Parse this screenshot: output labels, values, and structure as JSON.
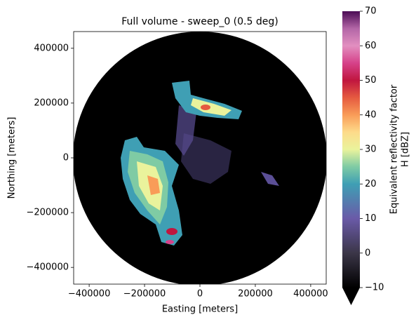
{
  "chart_data": {
    "type": "radar-ppi",
    "title": "Full volume - sweep_0 (0.5 deg)",
    "x_label": "Easting [meters]",
    "y_label": "Northing [meters]",
    "xlim": [
      -456000,
      456000
    ],
    "ylim": [
      -461000,
      461000
    ],
    "xticks": [
      {
        "value": -400000,
        "label": "−400000"
      },
      {
        "value": -200000,
        "label": "−200000"
      },
      0,
      200000,
      400000
    ],
    "yticks": [
      {
        "value": -400000,
        "label": "−400000"
      },
      {
        "value": -200000,
        "label": "−200000"
      },
      0,
      200000,
      400000
    ],
    "colorbar": {
      "label": [
        "Equivalent reflectivity factor",
        "H [dBZ]"
      ],
      "lim": [
        -10,
        70
      ],
      "ticks": [
        {
          "value": -10,
          "label": "−10"
        },
        0,
        10,
        20,
        30,
        40,
        50,
        60,
        70
      ],
      "stops": [
        {
          "value": -10,
          "color": "#000000"
        },
        {
          "value": 0,
          "color": "#3b3648"
        },
        {
          "value": 10,
          "color": "#6a5aa8"
        },
        {
          "value": 20,
          "color": "#3f9fb4"
        },
        {
          "value": 25,
          "color": "#7fcba4"
        },
        {
          "value": 30,
          "color": "#eaf39c"
        },
        {
          "value": 35,
          "color": "#fddb8a"
        },
        {
          "value": 40,
          "color": "#f99c58"
        },
        {
          "value": 45,
          "color": "#e55a40"
        },
        {
          "value": 50,
          "color": "#c0163f"
        },
        {
          "value": 55,
          "color": "#d6428a"
        },
        {
          "value": 60,
          "color": "#e28fc0"
        },
        {
          "value": 65,
          "color": "#b366a7"
        },
        {
          "value": 70,
          "color": "#4b0c55"
        }
      ]
    }
  }
}
